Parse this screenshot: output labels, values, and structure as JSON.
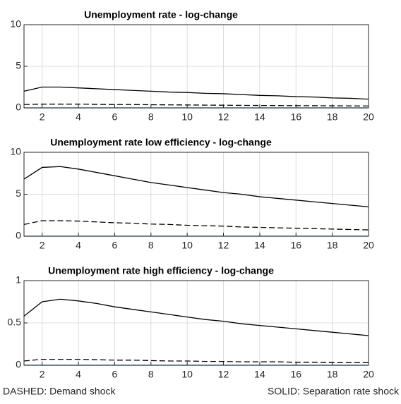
{
  "chart_data": [
    {
      "type": "line",
      "title": "Unemployment rate - log-change",
      "x": [
        1,
        2,
        3,
        4,
        5,
        6,
        7,
        8,
        9,
        10,
        11,
        12,
        13,
        14,
        15,
        16,
        17,
        18,
        19,
        20
      ],
      "xlim": [
        1,
        20
      ],
      "xticks": [
        2,
        4,
        6,
        8,
        10,
        12,
        14,
        16,
        18,
        20
      ],
      "ylim": [
        0,
        10
      ],
      "yticks": [
        0,
        5,
        10
      ],
      "grid": true,
      "series": [
        {
          "style": "solid",
          "color": "#000000",
          "values": [
            2.0,
            2.5,
            2.5,
            2.4,
            2.3,
            2.2,
            2.1,
            2.0,
            1.9,
            1.85,
            1.75,
            1.7,
            1.6,
            1.5,
            1.45,
            1.35,
            1.3,
            1.2,
            1.15,
            1.05
          ]
        },
        {
          "style": "dashed",
          "color": "#000000",
          "values": [
            0.4,
            0.45,
            0.45,
            0.45,
            0.42,
            0.4,
            0.4,
            0.38,
            0.36,
            0.35,
            0.33,
            0.32,
            0.3,
            0.29,
            0.28,
            0.27,
            0.26,
            0.25,
            0.24,
            0.23
          ]
        },
        {
          "style": "solid",
          "color": "#0072bd",
          "values": [
            0,
            0,
            0,
            0,
            0,
            0,
            0,
            0,
            0,
            0,
            0,
            0,
            0,
            0,
            0,
            0,
            0,
            0,
            0,
            0
          ]
        }
      ]
    },
    {
      "type": "line",
      "title": "Unemployment rate low efficiency  - log-change",
      "x": [
        1,
        2,
        3,
        4,
        5,
        6,
        7,
        8,
        9,
        10,
        11,
        12,
        13,
        14,
        15,
        16,
        17,
        18,
        19,
        20
      ],
      "xlim": [
        1,
        20
      ],
      "xticks": [
        2,
        4,
        6,
        8,
        10,
        12,
        14,
        16,
        18,
        20
      ],
      "ylim": [
        0,
        10
      ],
      "yticks": [
        0,
        5,
        10
      ],
      "grid": true,
      "series": [
        {
          "style": "solid",
          "color": "#000000",
          "values": [
            6.8,
            8.2,
            8.3,
            8.0,
            7.6,
            7.2,
            6.8,
            6.4,
            6.1,
            5.8,
            5.5,
            5.2,
            5.0,
            4.7,
            4.5,
            4.3,
            4.1,
            3.9,
            3.7,
            3.5
          ]
        },
        {
          "style": "dashed",
          "color": "#000000",
          "values": [
            1.4,
            1.85,
            1.85,
            1.8,
            1.7,
            1.6,
            1.55,
            1.45,
            1.4,
            1.3,
            1.25,
            1.2,
            1.1,
            1.05,
            1.0,
            0.95,
            0.9,
            0.85,
            0.8,
            0.75
          ]
        },
        {
          "style": "solid",
          "color": "#0072bd",
          "values": [
            0,
            0,
            0,
            0,
            0,
            0,
            0,
            0,
            0,
            0,
            0,
            0,
            0,
            0,
            0,
            0,
            0,
            0,
            0,
            0
          ]
        }
      ]
    },
    {
      "type": "line",
      "title": "Unemployment rate high efficiency  - log-change",
      "x": [
        1,
        2,
        3,
        4,
        5,
        6,
        7,
        8,
        9,
        10,
        11,
        12,
        13,
        14,
        15,
        16,
        17,
        18,
        19,
        20
      ],
      "xlim": [
        1,
        20
      ],
      "xticks": [
        2,
        4,
        6,
        8,
        10,
        12,
        14,
        16,
        18,
        20
      ],
      "ylim": [
        0,
        1
      ],
      "yticks": [
        0,
        0.5,
        1
      ],
      "grid": true,
      "series": [
        {
          "style": "solid",
          "color": "#000000",
          "values": [
            0.58,
            0.75,
            0.78,
            0.76,
            0.73,
            0.69,
            0.66,
            0.63,
            0.6,
            0.57,
            0.54,
            0.52,
            0.49,
            0.47,
            0.45,
            0.43,
            0.41,
            0.39,
            0.37,
            0.35
          ]
        },
        {
          "style": "dashed",
          "color": "#000000",
          "values": [
            0.05,
            0.07,
            0.07,
            0.07,
            0.065,
            0.06,
            0.06,
            0.055,
            0.05,
            0.05,
            0.045,
            0.045,
            0.04,
            0.04,
            0.04,
            0.035,
            0.035,
            0.03,
            0.03,
            0.03
          ]
        },
        {
          "style": "solid",
          "color": "#0072bd",
          "values": [
            0,
            0,
            0,
            0,
            0,
            0,
            0,
            0,
            0,
            0,
            0,
            0,
            0,
            0,
            0,
            0,
            0,
            0,
            0,
            0
          ]
        }
      ]
    }
  ],
  "footer": [
    "DASHED: Demand shock",
    "SOLID: Separation rate shock"
  ]
}
